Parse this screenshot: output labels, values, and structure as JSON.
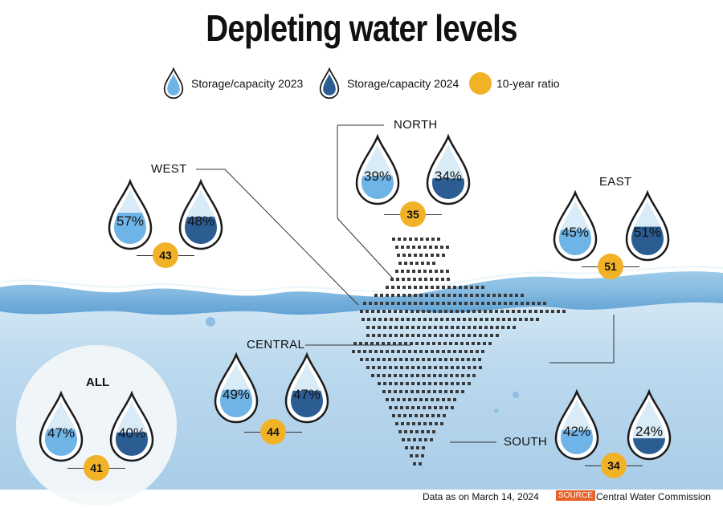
{
  "title": "Depleting water levels",
  "legend": [
    {
      "label": "Storage/capacity 2023",
      "color": "#6fb4e6"
    },
    {
      "label": "Storage/capacity 2024",
      "color": "#2b5d93"
    },
    {
      "label": "10-year ratio",
      "color": "#f2b227"
    }
  ],
  "colors": {
    "light": "#6fb4e6",
    "dark": "#2b5d93",
    "ratio": "#f2b227",
    "water": "#bcd9ee"
  },
  "chart_data": {
    "type": "table",
    "title": "Depleting water levels",
    "columns": [
      "Storage/capacity 2023",
      "Storage/capacity 2024",
      "10-year ratio"
    ],
    "regions": [
      {
        "name": "NORTH",
        "v2023": 39,
        "v2024": 34,
        "ratio": 35,
        "label2023": "39%",
        "label2024": "34%",
        "labelRatio": "35"
      },
      {
        "name": "WEST",
        "v2023": 57,
        "v2024": 48,
        "ratio": 43,
        "label2023": "57%",
        "label2024": "48%",
        "labelRatio": "43"
      },
      {
        "name": "EAST",
        "v2023": 45,
        "v2024": 51,
        "ratio": 51,
        "label2023": "45%",
        "label2024": "51%",
        "labelRatio": "51"
      },
      {
        "name": "CENTRAL",
        "v2023": 49,
        "v2024": 47,
        "ratio": 44,
        "label2023": "49%",
        "label2024": "47%",
        "labelRatio": "44"
      },
      {
        "name": "SOUTH",
        "v2023": 42,
        "v2024": 24,
        "ratio": 34,
        "label2023": "42%",
        "label2024": "24%",
        "labelRatio": "34"
      },
      {
        "name": "ALL",
        "v2023": 47,
        "v2024": 40,
        "ratio": 41,
        "label2023": "47%",
        "label2024": "40%",
        "labelRatio": "41"
      }
    ]
  },
  "footer": {
    "date_text": "Data as on March 14, 2024",
    "source_badge": "SOURCE",
    "source_name": "Central Water Commission"
  }
}
